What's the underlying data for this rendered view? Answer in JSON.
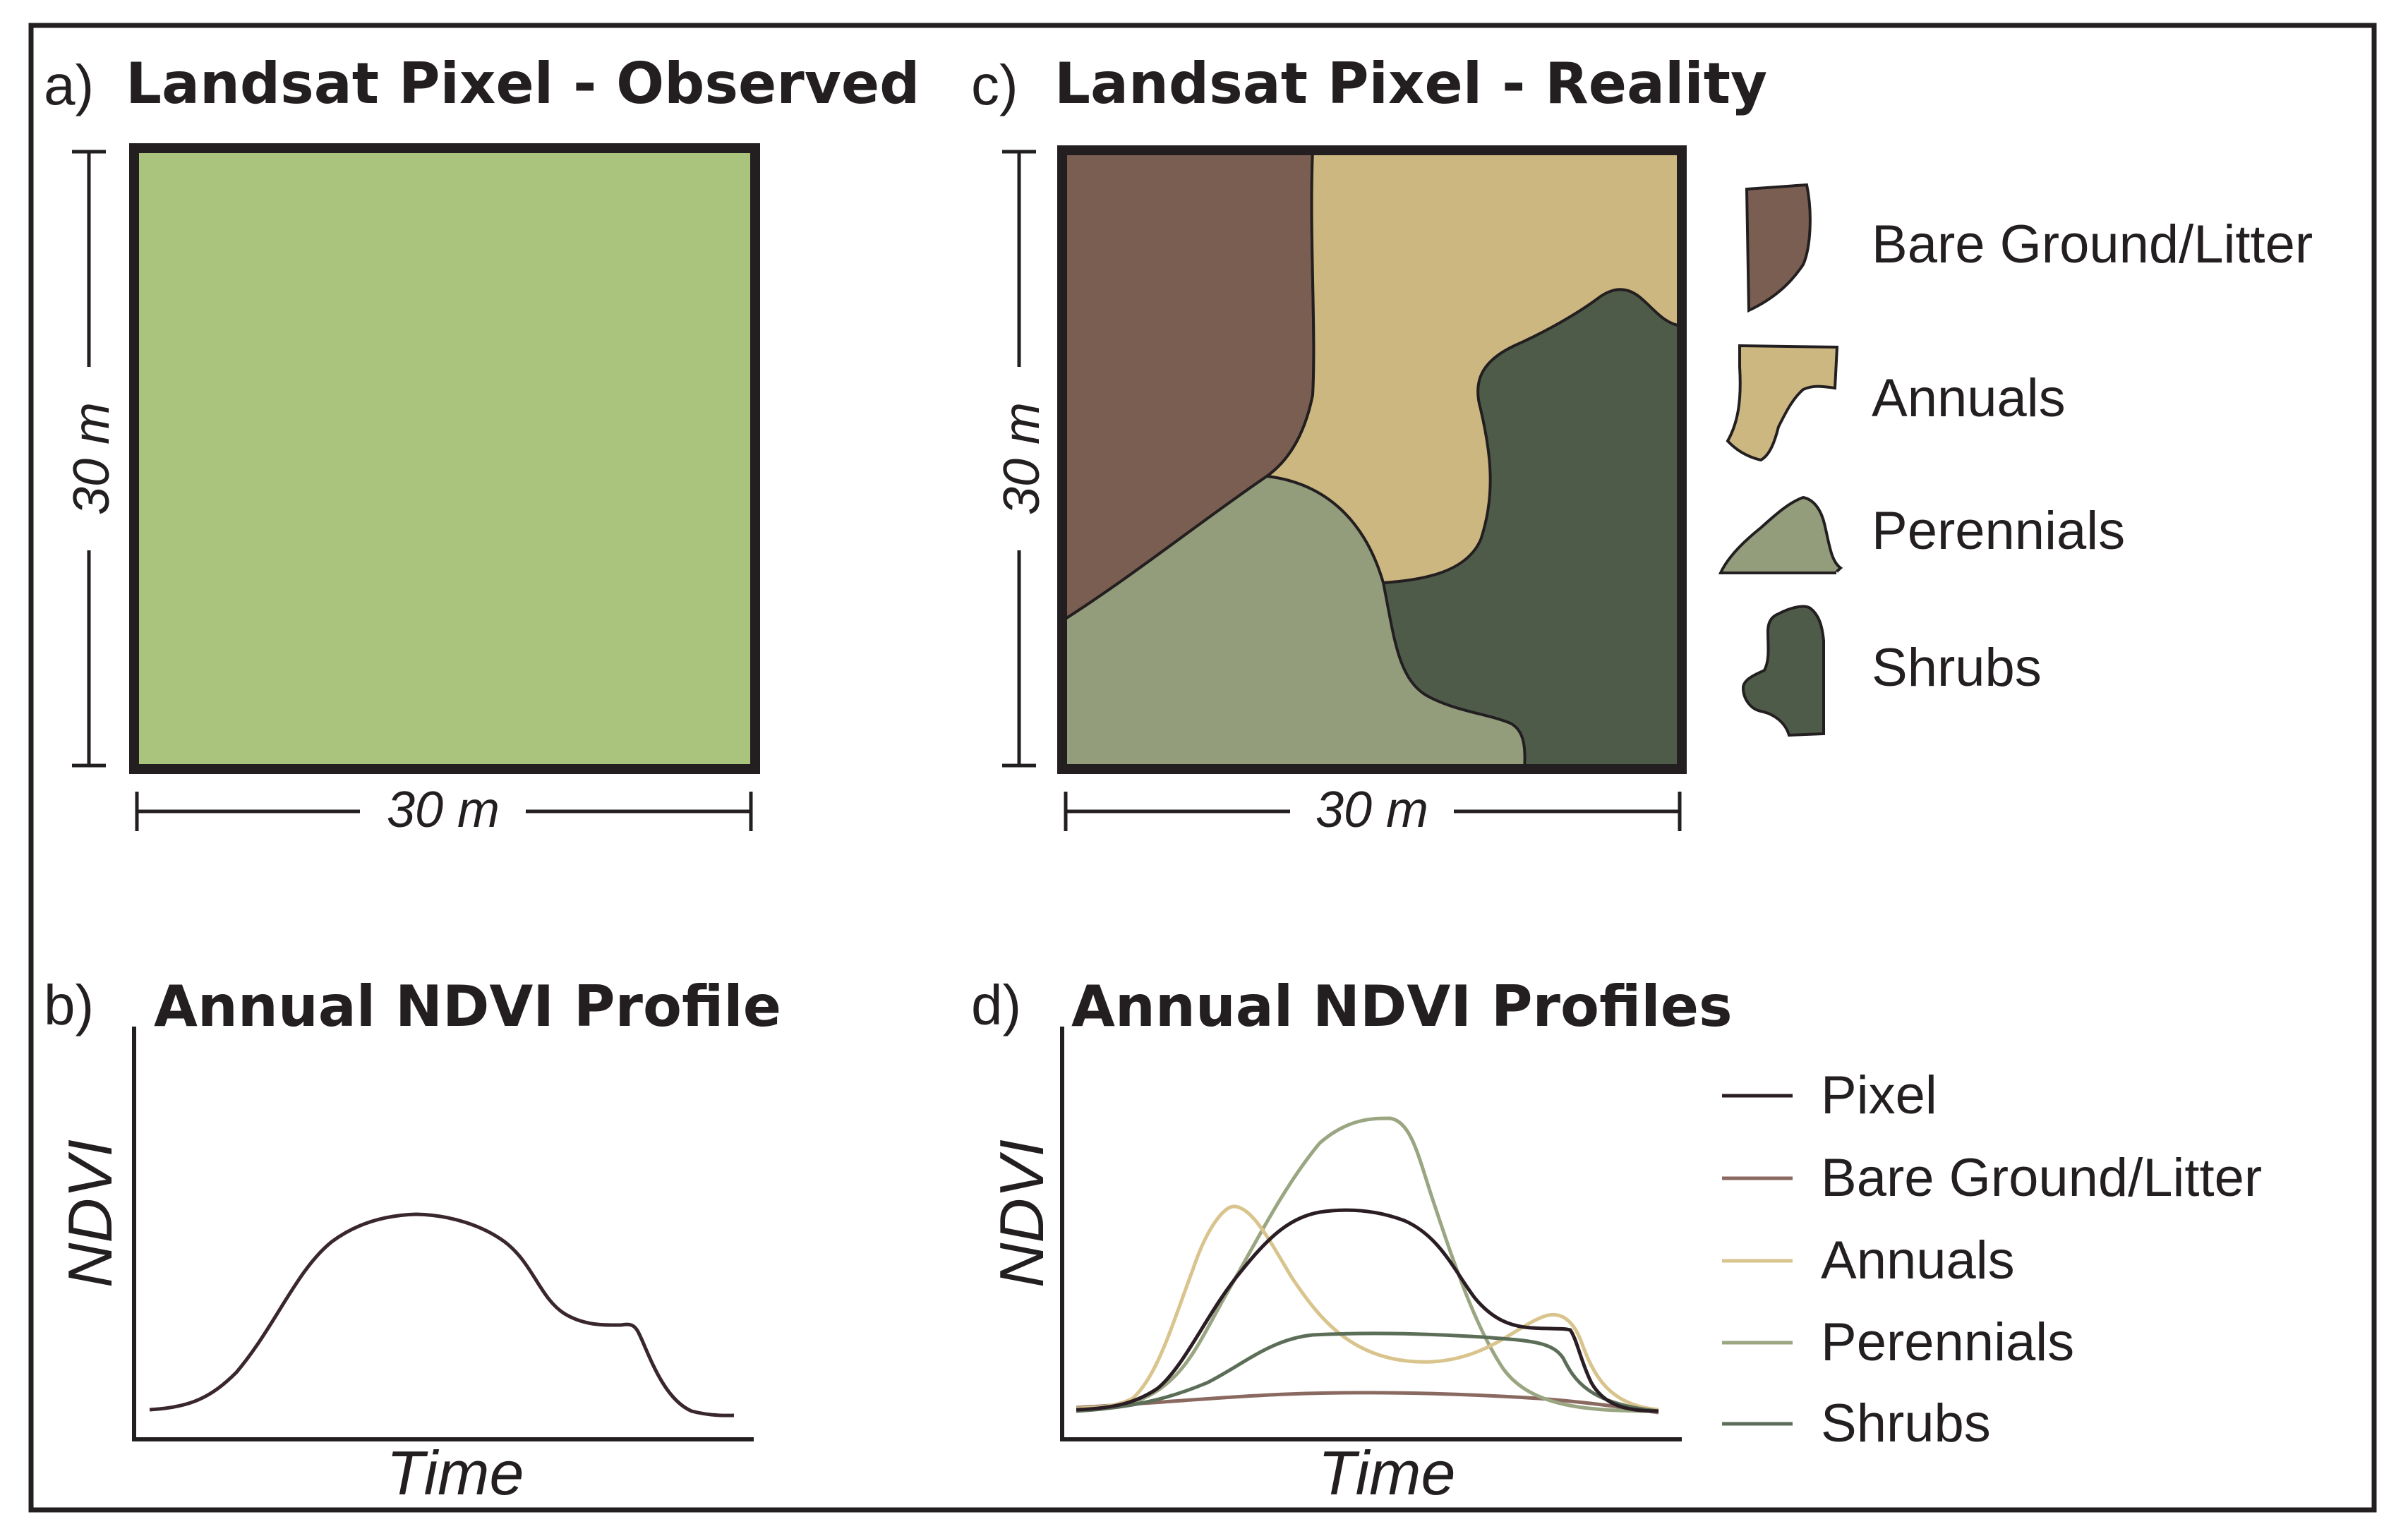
{
  "panels": {
    "a": {
      "letter": "a)",
      "title": "Landsat Pixel - Observed",
      "width_label": "30 m",
      "height_label": "30 m"
    },
    "b": {
      "letter": "b)",
      "title": "Annual NDVI Profile",
      "y_axis_label": "NDVI",
      "x_axis_label": "Time"
    },
    "c": {
      "letter": "c)",
      "title": "Landsat Pixel - Reality",
      "width_label": "30 m",
      "height_label": "30 m"
    },
    "d": {
      "letter": "d)",
      "title": "Annual NDVI Profiles",
      "y_axis_label": "NDVI",
      "x_axis_label": "Time"
    }
  },
  "cover_legend": [
    {
      "label": "Bare Ground/Litter",
      "color": "#7a5e51"
    },
    {
      "label": "Annuals",
      "color": "#cdb781"
    },
    {
      "label": "Perennials",
      "color": "#939c7b"
    },
    {
      "label": "Shrubs",
      "color": "#4f5b49"
    }
  ],
  "profile_legend": [
    {
      "label": "Pixel",
      "color": "#2a1d24"
    },
    {
      "label": "Bare Ground/Litter",
      "color": "#8a6a60"
    },
    {
      "label": "Annuals",
      "color": "#d8c48c"
    },
    {
      "label": "Perennials",
      "color": "#9aa682"
    },
    {
      "label": "Shrubs",
      "color": "#5c6e58"
    }
  ],
  "colors": {
    "observed_pixel": "#aac37d",
    "frame": "#231f20",
    "profile_b": "#3a272d"
  }
}
